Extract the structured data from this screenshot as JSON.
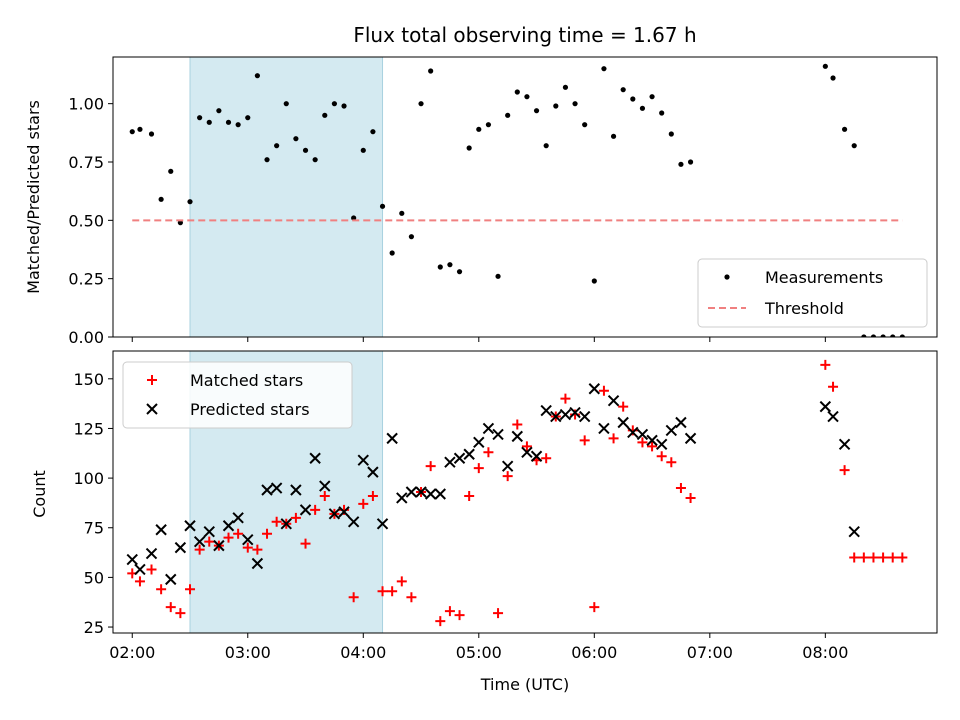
{
  "chart_data": [
    {
      "type": "scatter",
      "title": "Flux total observing time = 1.67 h",
      "ylabel": "Matched/Predicted stars",
      "xlim": [
        "01:50",
        "08:58"
      ],
      "ylim": [
        0,
        1.2
      ],
      "yticks": [
        0.0,
        0.25,
        0.5,
        0.75,
        1.0
      ],
      "ytick_labels": [
        "0.00",
        "0.25",
        "0.50",
        "0.75",
        "1.00"
      ],
      "xticks": [
        "02:00",
        "03:00",
        "04:00",
        "05:00",
        "06:00",
        "07:00",
        "08:00"
      ],
      "shaded_span": [
        "02:30",
        "04:10"
      ],
      "shade_color": "#d4eaf1",
      "legend_loc": "lower right",
      "series": [
        {
          "name": "Measurements",
          "style": "dot",
          "color": "#000000",
          "x": [
            "02:00",
            "02:04",
            "02:10",
            "02:15",
            "02:20",
            "02:25",
            "02:30",
            "02:35",
            "02:40",
            "02:45",
            "02:50",
            "02:55",
            "03:00",
            "03:05",
            "03:10",
            "03:15",
            "03:20",
            "03:25",
            "03:30",
            "03:35",
            "03:40",
            "03:45",
            "03:50",
            "03:55",
            "04:00",
            "04:05",
            "04:10",
            "04:15",
            "04:20",
            "04:25",
            "04:30",
            "04:35",
            "04:40",
            "04:45",
            "04:50",
            "04:55",
            "05:00",
            "05:05",
            "05:10",
            "05:15",
            "05:20",
            "05:25",
            "05:30",
            "05:35",
            "05:40",
            "05:45",
            "05:50",
            "05:55",
            "06:00",
            "06:05",
            "06:10",
            "06:15",
            "06:20",
            "06:25",
            "06:30",
            "06:35",
            "06:40",
            "06:45",
            "06:50",
            "08:00",
            "08:04",
            "08:10",
            "08:15",
            "08:20",
            "08:25",
            "08:30",
            "08:35",
            "08:40"
          ],
          "y": [
            0.88,
            0.89,
            0.87,
            0.59,
            0.71,
            0.49,
            0.58,
            0.94,
            0.92,
            0.97,
            0.92,
            0.91,
            0.94,
            1.12,
            0.76,
            0.82,
            1.0,
            0.85,
            0.8,
            0.76,
            0.95,
            1.0,
            0.99,
            0.51,
            0.8,
            0.88,
            0.56,
            0.36,
            0.53,
            0.43,
            1.0,
            1.14,
            0.3,
            0.31,
            0.28,
            0.81,
            0.89,
            0.91,
            0.26,
            0.95,
            1.05,
            1.03,
            0.97,
            0.82,
            0.99,
            1.07,
            1.0,
            0.91,
            0.24,
            1.15,
            0.86,
            1.06,
            1.02,
            0.98,
            1.03,
            0.96,
            0.87,
            0.74,
            0.75,
            1.16,
            1.11,
            0.89,
            0.82,
            0.0,
            0.0,
            0.0,
            0.0,
            0.0
          ]
        },
        {
          "name": "Threshold",
          "style": "dashed-line",
          "color": "#f08080",
          "x": [
            "02:00",
            "08:40"
          ],
          "y": [
            0.5,
            0.5
          ]
        }
      ]
    },
    {
      "type": "scatter",
      "xlabel": "Time (UTC)",
      "ylabel": "Count",
      "xlim": [
        "01:50",
        "08:58"
      ],
      "ylim": [
        22,
        164
      ],
      "yticks": [
        25,
        50,
        75,
        100,
        125,
        150
      ],
      "xticks": [
        "02:00",
        "03:00",
        "04:00",
        "05:00",
        "06:00",
        "07:00",
        "08:00"
      ],
      "shaded_span": [
        "02:30",
        "04:10"
      ],
      "legend_loc": "upper left",
      "series": [
        {
          "name": "Matched stars",
          "style": "plus",
          "color": "#ff0000",
          "x": [
            "02:00",
            "02:04",
            "02:10",
            "02:15",
            "02:20",
            "02:25",
            "02:30",
            "02:35",
            "02:40",
            "02:45",
            "02:50",
            "02:55",
            "03:00",
            "03:05",
            "03:10",
            "03:15",
            "03:20",
            "03:25",
            "03:30",
            "03:35",
            "03:40",
            "03:45",
            "03:50",
            "03:55",
            "04:00",
            "04:05",
            "04:10",
            "04:15",
            "04:20",
            "04:25",
            "04:30",
            "04:35",
            "04:40",
            "04:45",
            "04:50",
            "04:55",
            "05:00",
            "05:05",
            "05:10",
            "05:15",
            "05:20",
            "05:25",
            "05:30",
            "05:35",
            "05:40",
            "05:45",
            "05:50",
            "05:55",
            "06:00",
            "06:05",
            "06:10",
            "06:15",
            "06:20",
            "06:25",
            "06:30",
            "06:35",
            "06:40",
            "06:45",
            "06:50",
            "08:00",
            "08:04",
            "08:10",
            "08:15",
            "08:20",
            "08:25",
            "08:30",
            "08:35",
            "08:40"
          ],
          "y": [
            52,
            48,
            54,
            44,
            35,
            32,
            44,
            64,
            68,
            66,
            70,
            72,
            65,
            64,
            72,
            78,
            77,
            80,
            67,
            84,
            91,
            82,
            84,
            40,
            87,
            91,
            43,
            43,
            48,
            40,
            93,
            106,
            28,
            33,
            31,
            91,
            105,
            113,
            32,
            101,
            127,
            116,
            109,
            110,
            131,
            140,
            132,
            119,
            35,
            144,
            120,
            136,
            124,
            118,
            116,
            111,
            108,
            95,
            90,
            157,
            146,
            104,
            60,
            60,
            60,
            60,
            60,
            60
          ]
        },
        {
          "name": "Predicted stars",
          "style": "x",
          "color": "#000000",
          "x": [
            "02:00",
            "02:04",
            "02:10",
            "02:15",
            "02:20",
            "02:25",
            "02:30",
            "02:35",
            "02:40",
            "02:45",
            "02:50",
            "02:55",
            "03:00",
            "03:05",
            "03:10",
            "03:15",
            "03:20",
            "03:25",
            "03:30",
            "03:35",
            "03:40",
            "03:45",
            "03:50",
            "03:55",
            "04:00",
            "04:05",
            "04:10",
            "04:15",
            "04:20",
            "04:25",
            "04:30",
            "04:35",
            "04:40",
            "04:45",
            "04:50",
            "04:55",
            "05:00",
            "05:05",
            "05:10",
            "05:15",
            "05:20",
            "05:25",
            "05:30",
            "05:35",
            "05:40",
            "05:45",
            "05:50",
            "05:55",
            "06:00",
            "06:05",
            "06:10",
            "06:15",
            "06:20",
            "06:25",
            "06:30",
            "06:35",
            "06:40",
            "06:45",
            "06:50",
            "08:00",
            "08:04",
            "08:10",
            "08:15"
          ],
          "y": [
            59,
            54,
            62,
            74,
            49,
            65,
            76,
            68,
            73,
            66,
            76,
            80,
            69,
            57,
            94,
            95,
            77,
            94,
            84,
            110,
            96,
            82,
            83,
            78,
            109,
            103,
            77,
            120,
            90,
            93,
            93,
            92,
            92,
            108,
            110,
            112,
            118,
            125,
            122,
            106,
            121,
            113,
            111,
            134,
            131,
            132,
            133,
            131,
            145,
            125,
            139,
            128,
            123,
            122,
            119,
            117,
            124,
            128,
            120,
            136,
            131,
            117,
            73
          ]
        }
      ]
    }
  ]
}
